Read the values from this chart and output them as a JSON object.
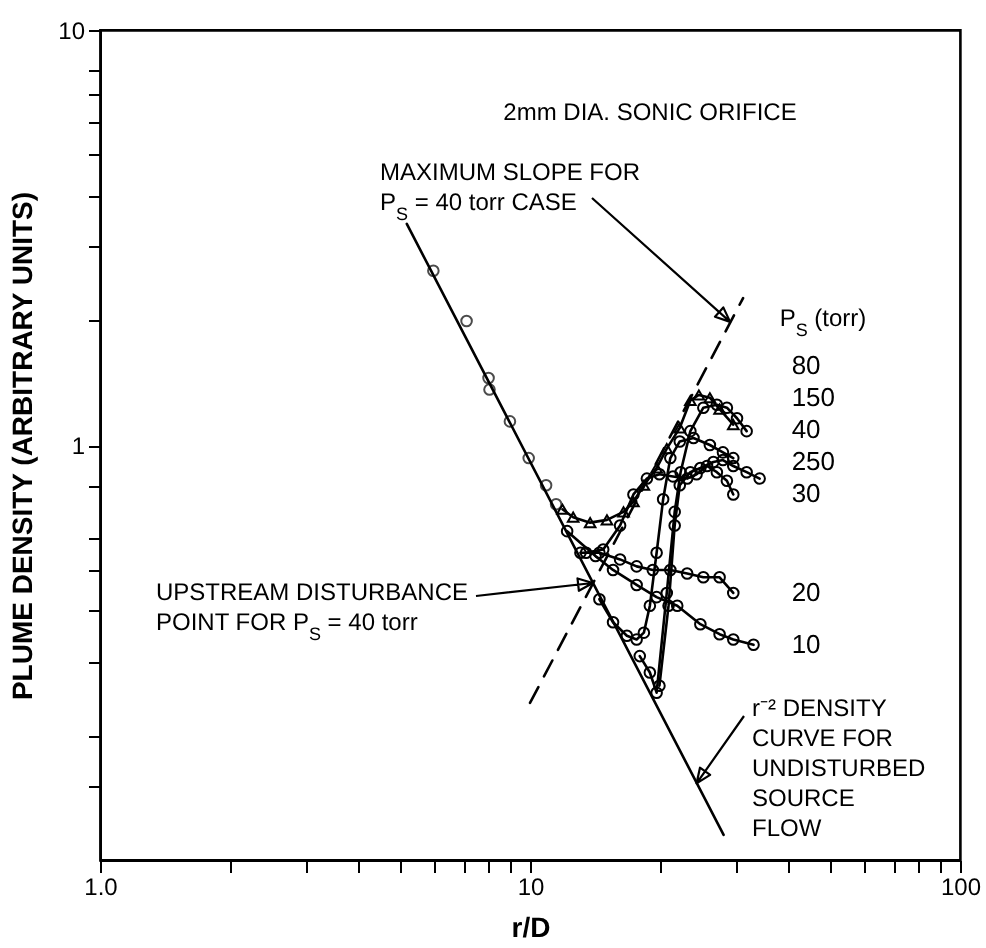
{
  "chart_data": {
    "type": "line",
    "title": null,
    "xlabel": "r/D",
    "ylabel": "PLUME DENSITY (ARBITRARY UNITS)",
    "legend_title": "P$_{S}$ (torr)",
    "log": "xy",
    "legend": "right",
    "grid": false,
    "marker": "circle",
    "xlim": [
      1,
      100
    ],
    "ylim": [
      0.1,
      10
    ],
    "xticks": [
      {
        "value": 1,
        "label": "1.0"
      },
      {
        "value": 2,
        "label": null
      },
      {
        "value": 3,
        "label": null
      },
      {
        "value": 4,
        "label": null
      },
      {
        "value": 5,
        "label": null
      },
      {
        "value": 6,
        "label": null
      },
      {
        "value": 7,
        "label": null
      },
      {
        "value": 8,
        "label": null
      },
      {
        "value": 9,
        "label": null
      },
      10,
      {
        "value": 20,
        "label": null
      },
      {
        "value": 30,
        "label": null
      },
      {
        "value": 40,
        "label": null
      },
      {
        "value": 50,
        "label": null
      },
      {
        "value": 60,
        "label": null
      },
      {
        "value": 70,
        "label": null
      },
      {
        "value": 80,
        "label": null
      },
      {
        "value": 90,
        "label": null
      },
      100
    ],
    "yticks": [
      {
        "value": 0.15,
        "label": null
      },
      {
        "value": 0.2,
        "label": null
      },
      {
        "value": 0.3,
        "label": null
      },
      {
        "value": 0.4,
        "label": null
      },
      {
        "value": 0.5,
        "label": null
      },
      {
        "value": 0.6,
        "label": null
      },
      {
        "value": 0.8,
        "label": null
      },
      1,
      {
        "value": 2,
        "label": null
      },
      {
        "value": 3,
        "label": null
      },
      {
        "value": 4,
        "label": null
      },
      {
        "value": 5,
        "label": null
      },
      {
        "value": 6,
        "label": null
      },
      {
        "value": 7,
        "label": null
      },
      {
        "value": 8,
        "label": null
      },
      10
    ],
    "annotations": [
      "2mm DIA. SONIC ORIFICE",
      {
        "text": "MAXIMUM SLOPE FOR\nP$_{S}$ = 40 torr CASE",
        "x": 29.2,
        "y": 1.98
      },
      {
        "text": "UPSTREAM DISTURBANCE\nPOINT FOR P$_{S}$ = 40 torr",
        "x": 14,
        "y": 0.465
      },
      {
        "text": "r⁻² DENSITY\nCURVE FOR\nUNDISTURBED\nSOURCE\nFLOW",
        "x": 24.4,
        "y": 0.153
      }
    ],
    "series": [
      {
        "type": "line",
        "marker": "none",
        "color": "#000000",
        "x": [
          5.17,
          28.2
        ],
        "values": [
          3.41,
          0.115
        ]
      },
      {
        "type": "line",
        "marker": "none",
        "line_style": "dashed",
        "color": "#000000",
        "x": [
          10.0,
          31.3
        ],
        "values": [
          0.239,
          2.26
        ]
      },
      {
        "type": "scatter",
        "color": "#000000",
        "x": [
          5.96,
          7.12,
          8.01,
          8.05,
          8.98,
          9.93,
          10.9,
          11.5
        ],
        "values": [
          2.63,
          1.99,
          1.45,
          1.36,
          1.14,
          0.93,
          0.8,
          0.72
        ]
      },
      {
        "name": "80",
        "marker": "triangle",
        "color": "#000000",
        "x": [
          11.9,
          12.6,
          13.8,
          15.1,
          16.5,
          17.4,
          18.4,
          19.7,
          20.8,
          22.3,
          23.6,
          24.7,
          26.2,
          27.6,
          29.7
        ],
        "values": [
          0.7,
          0.67,
          0.65,
          0.66,
          0.69,
          0.73,
          0.8,
          0.88,
          0.98,
          1.1,
          1.28,
          1.32,
          1.3,
          1.22,
          1.12
        ]
      },
      {
        "name": "150",
        "color": "#000000",
        "x": [
          18.0,
          19.0,
          19.7,
          20.8,
          21.7,
          22.4,
          23.6,
          25.3,
          27.2,
          28.7,
          30.3,
          31.9
        ],
        "values": [
          0.31,
          0.283,
          0.253,
          0.44,
          0.69,
          0.86,
          1.08,
          1.23,
          1.25,
          1.23,
          1.16,
          1.08
        ]
      },
      {
        "name": "40",
        "color": "#000000",
        "x": [
          14.5,
          15.6,
          16.8,
          17.7,
          18.4,
          19.0,
          19.7,
          20.4,
          21.2,
          22.3,
          24.0,
          26.2,
          28.1,
          29.7
        ],
        "values": [
          0.425,
          0.374,
          0.347,
          0.34,
          0.353,
          0.41,
          0.55,
          0.74,
          0.93,
          1.02,
          1.04,
          1.0,
          0.96,
          0.93
        ]
      },
      {
        "name": "250",
        "color": "#000000",
        "x": [
          20.0,
          21.0,
          21.7,
          22.3,
          23.6,
          24.9,
          26.7,
          28.1,
          29.7,
          31.9,
          34.2
        ],
        "values": [
          0.263,
          0.41,
          0.64,
          0.8,
          0.86,
          0.88,
          0.91,
          0.92,
          0.89,
          0.86,
          0.83
        ]
      },
      {
        "name": "30",
        "color": "#000000",
        "x": [
          13.5,
          14.8,
          16.2,
          17.4,
          18.7,
          20.0,
          21.5,
          23.2,
          24.4,
          25.8,
          27.2,
          28.7,
          29.7
        ],
        "values": [
          0.55,
          0.56,
          0.64,
          0.76,
          0.83,
          0.85,
          0.84,
          0.83,
          0.85,
          0.89,
          0.86,
          0.82,
          0.76
        ]
      },
      {
        "name": "20",
        "color": "#000000",
        "x": [
          13.1,
          14.5,
          16.2,
          17.7,
          19.3,
          21.2,
          23.2,
          25.3,
          27.6,
          29.7
        ],
        "values": [
          0.55,
          0.55,
          0.53,
          0.51,
          0.5,
          0.5,
          0.49,
          0.48,
          0.48,
          0.44
        ]
      },
      {
        "name": "10",
        "color": "#000000",
        "x": [
          12.2,
          14.2,
          15.6,
          17.7,
          19.7,
          22.0,
          24.9,
          27.6,
          29.7,
          33.1
        ],
        "values": [
          0.62,
          0.54,
          0.5,
          0.46,
          0.43,
          0.41,
          0.37,
          0.35,
          0.34,
          0.33
        ]
      }
    ]
  }
}
